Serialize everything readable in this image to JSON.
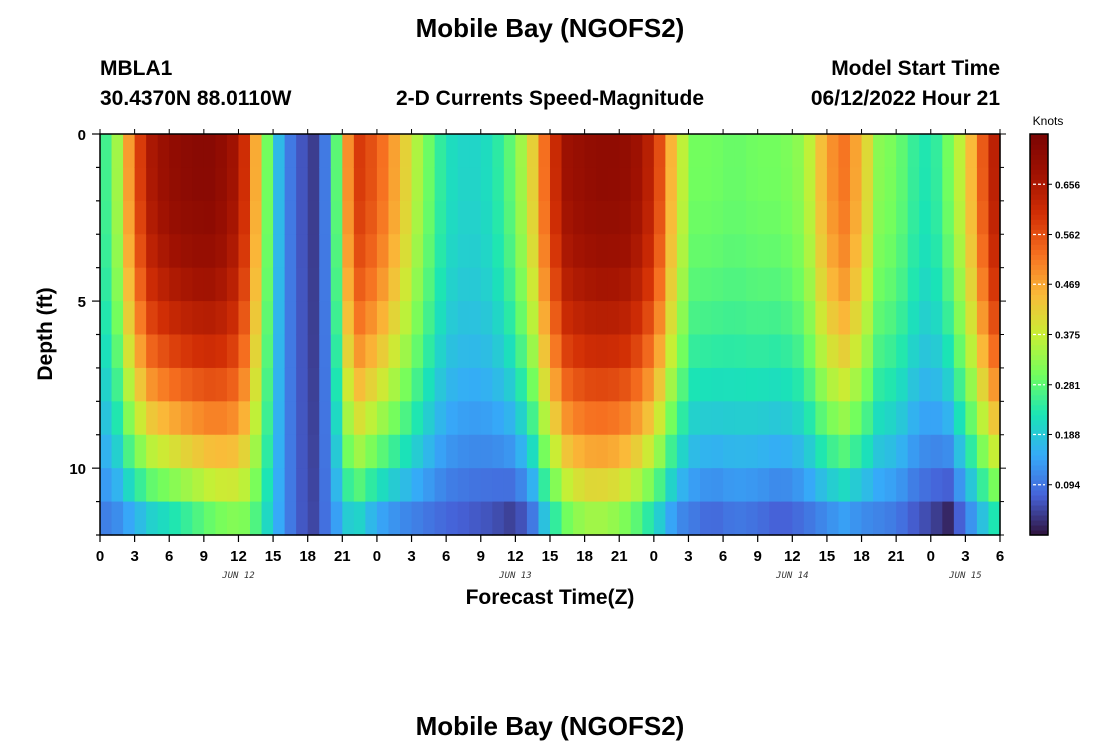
{
  "header": {
    "title": "Mobile Bay (NGOFS2)",
    "station": "MBLA1",
    "location": "30.4370N  88.0110W",
    "subtitle": "2-D Currents Speed-Magnitude",
    "model_label": "Model Start Time",
    "model_time": "06/12/2022 Hour 21"
  },
  "footer": {
    "title": "Mobile Bay (NGOFS2)"
  },
  "chart_data": {
    "type": "heatmap",
    "xlabel": "Forecast Time(Z)",
    "ylabel": "Depth (ft)",
    "x_range_hours": [
      0,
      78
    ],
    "y_range_ft": [
      0,
      12
    ],
    "y_inverted": true,
    "x_tick_labels": [
      "0",
      "3",
      "6",
      "9",
      "12",
      "15",
      "18",
      "21",
      "0",
      "3",
      "6",
      "9",
      "12",
      "15",
      "18",
      "21",
      "0",
      "3",
      "6",
      "9",
      "12",
      "15",
      "18",
      "21",
      "0",
      "3",
      "6"
    ],
    "y_tick_labels": [
      "0",
      "5",
      "10"
    ],
    "date_labels": [
      {
        "text": "JUN 12",
        "hour": 12
      },
      {
        "text": "JUN 13",
        "hour": 36
      },
      {
        "text": "JUN 14",
        "hour": 60
      },
      {
        "text": "JUN 15",
        "hour": 75
      }
    ],
    "colorbar": {
      "unit": "Knots",
      "range": [
        0,
        0.75
      ],
      "ticks": [
        "0.094",
        "0.188",
        "0.281",
        "0.375",
        "0.469",
        "0.562",
        "0.656"
      ],
      "colormap": "turbo"
    },
    "speed_profile": {
      "description_free": true,
      "hours": [
        0,
        1.5,
        3,
        4.5,
        6,
        8,
        10,
        12,
        13,
        14,
        15,
        16,
        17.2,
        18.5,
        19.5,
        20.5,
        22,
        24,
        26,
        28,
        30,
        32,
        34,
        36,
        37.5,
        39,
        40.5,
        42,
        44,
        46,
        48,
        50,
        51.5,
        53,
        55,
        57,
        59,
        61,
        63,
        64.5,
        66,
        67.5,
        69,
        70.5,
        72,
        73.5,
        75,
        76.5,
        77.2,
        78
      ],
      "surface": [
        0.22,
        0.34,
        0.55,
        0.66,
        0.7,
        0.72,
        0.72,
        0.66,
        0.55,
        0.38,
        0.22,
        0.12,
        0.07,
        0.04,
        0.1,
        0.28,
        0.6,
        0.55,
        0.45,
        0.32,
        0.22,
        0.2,
        0.22,
        0.3,
        0.42,
        0.58,
        0.68,
        0.7,
        0.71,
        0.7,
        0.62,
        0.4,
        0.3,
        0.3,
        0.29,
        0.3,
        0.3,
        0.33,
        0.48,
        0.52,
        0.45,
        0.32,
        0.3,
        0.25,
        0.22,
        0.3,
        0.4,
        0.55,
        0.62,
        0.66
      ],
      "bottom": [
        0.1,
        0.12,
        0.16,
        0.2,
        0.22,
        0.26,
        0.3,
        0.32,
        0.3,
        0.24,
        0.18,
        0.12,
        0.07,
        0.05,
        0.09,
        0.14,
        0.22,
        0.15,
        0.12,
        0.1,
        0.08,
        0.07,
        0.06,
        0.04,
        0.1,
        0.22,
        0.3,
        0.34,
        0.34,
        0.3,
        0.22,
        0.12,
        0.1,
        0.08,
        0.1,
        0.09,
        0.07,
        0.09,
        0.12,
        0.14,
        0.12,
        0.11,
        0.1,
        0.07,
        0.05,
        0.02,
        0.1,
        0.18,
        0.22,
        0.24
      ]
    }
  }
}
